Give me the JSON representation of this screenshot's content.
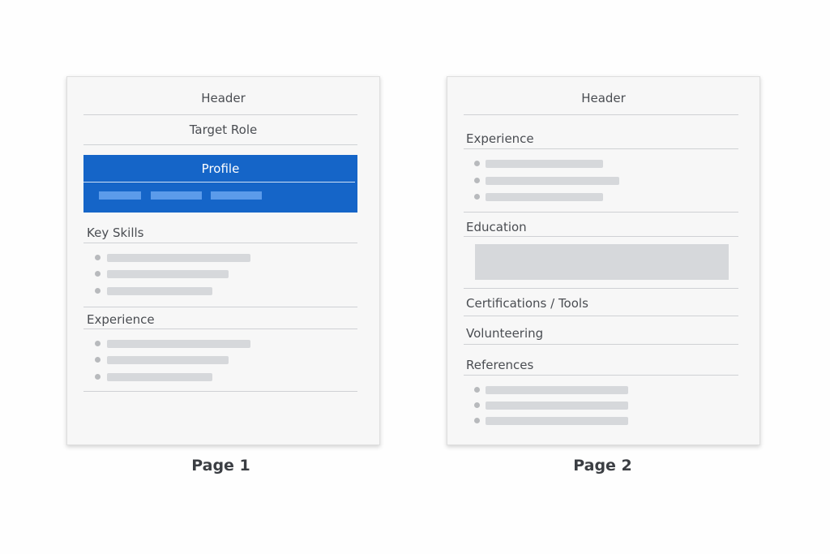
{
  "pages": [
    {
      "label": "Page 1",
      "header": "Header",
      "target_role": "Target Role",
      "profile": "Profile",
      "key_skills": "Key Skills",
      "experience": "Experience",
      "colors": {
        "profile_bg": "#1565c8",
        "profile_chips": "#5b9bea"
      }
    },
    {
      "label": "Page 2",
      "header": "Header",
      "experience": "Experience",
      "education": "Education",
      "certifications": "Certifications / Tools",
      "volunteering": "Volunteering",
      "references": "References"
    }
  ]
}
